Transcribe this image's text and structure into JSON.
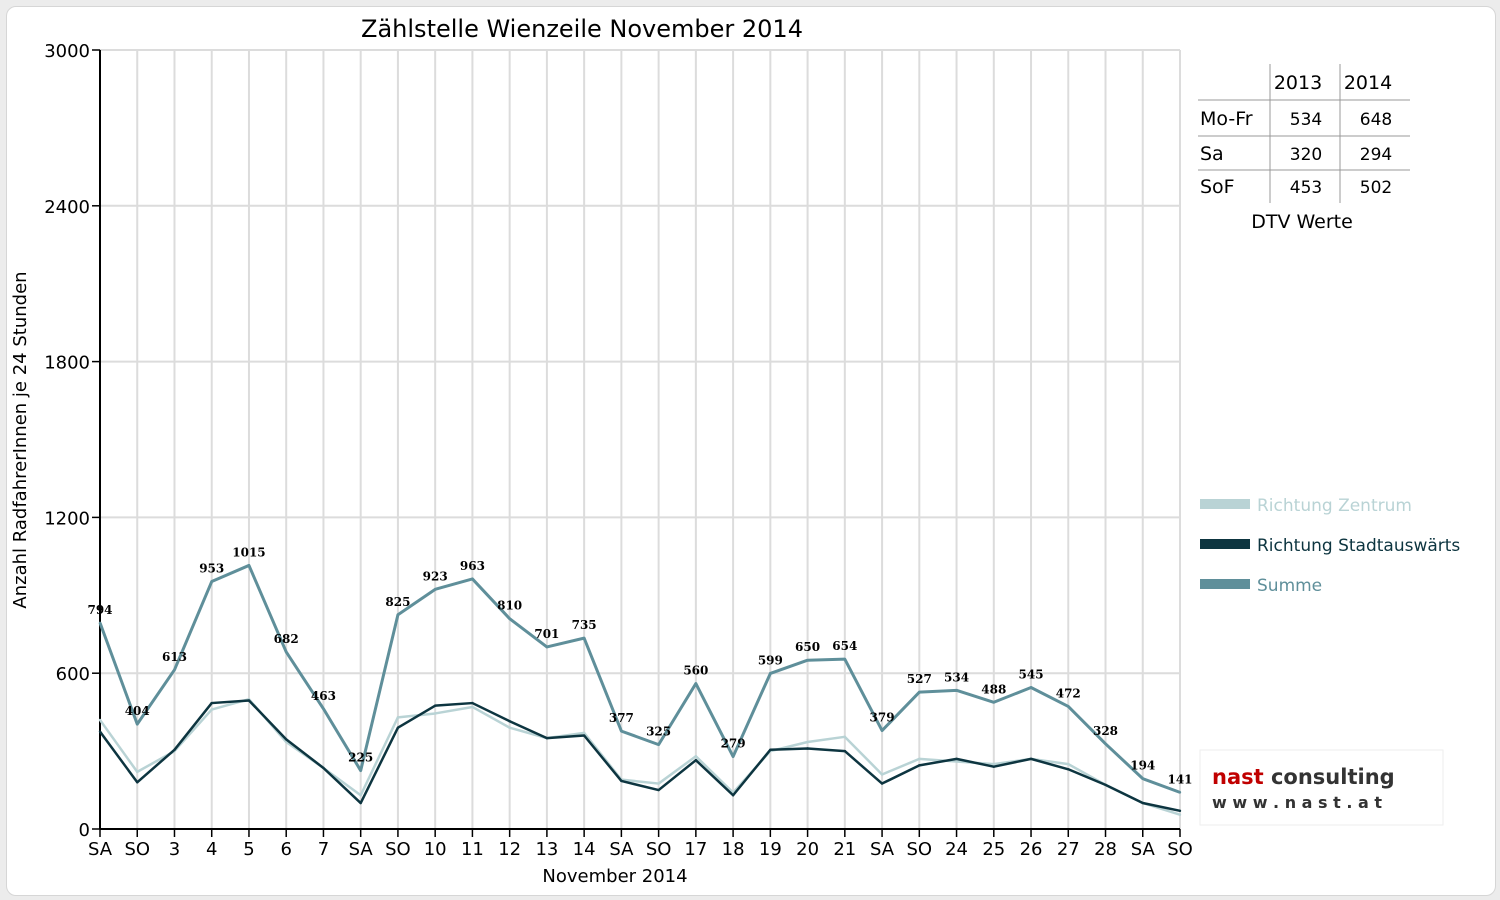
{
  "chart_data": {
    "type": "line",
    "title": "Zählstelle Wienzeile November 2014",
    "xlabel": "November 2014",
    "ylabel": "Anzahl RadfahrerInnen je 24 Stunden",
    "ylim": [
      0,
      3000
    ],
    "yticks": [
      "0",
      "600",
      "1200",
      "1800",
      "2400",
      "3000"
    ],
    "grid": true,
    "legend_position": "right",
    "categories": [
      "SA",
      "SO",
      "3",
      "4",
      "5",
      "6",
      "7",
      "SA",
      "SO",
      "10",
      "11",
      "12",
      "13",
      "14",
      "SA",
      "SO",
      "17",
      "18",
      "19",
      "20",
      "21",
      "SA",
      "SO",
      "24",
      "25",
      "26",
      "27",
      "28",
      "SA",
      "SO"
    ],
    "highlight_categories": [
      "SO"
    ],
    "highlight_color": "#ff0000",
    "series": [
      {
        "name": "Richtung Zentrum",
        "color": "#b9d3d5",
        "values": [
          420,
          220,
          300,
          460,
          500,
          335,
          235,
          130,
          430,
          445,
          470,
          390,
          350,
          370,
          190,
          175,
          280,
          140,
          300,
          335,
          355,
          210,
          270,
          260,
          250,
          270,
          250,
          170,
          100,
          55
        ]
      },
      {
        "name": "Richtung Stadtauswärts",
        "color": "#0d3540",
        "values": [
          375,
          180,
          305,
          485,
          495,
          345,
          235,
          100,
          390,
          475,
          485,
          415,
          350,
          360,
          185,
          150,
          265,
          130,
          305,
          310,
          300,
          175,
          245,
          270,
          240,
          270,
          230,
          170,
          100,
          70
        ]
      },
      {
        "name": "Summe",
        "color": "#5f8f9a",
        "values": [
          794,
          404,
          613,
          953,
          1015,
          682,
          463,
          225,
          825,
          923,
          963,
          810,
          701,
          735,
          377,
          325,
          560,
          279,
          599,
          650,
          654,
          379,
          527,
          534,
          488,
          545,
          472,
          328,
          194,
          141
        ]
      }
    ],
    "data_labels": [
      "794",
      "404",
      "613",
      "953",
      "1015",
      "682",
      "463",
      "225",
      "825",
      "923",
      "963",
      "810",
      "701",
      "735",
      "377",
      "325",
      "560",
      "279",
      "599",
      "650",
      "654",
      "379",
      "527",
      "534",
      "488",
      "545",
      "472",
      "328",
      "194",
      "141"
    ]
  },
  "dtv_table": {
    "header": [
      "",
      "2013",
      "2014"
    ],
    "rows": [
      {
        "label": "Mo-Fr",
        "v2013": "534",
        "v2014": "648"
      },
      {
        "label": "Sa",
        "v2013": "320",
        "v2014": "294"
      },
      {
        "label": "SoF",
        "v2013": "453",
        "v2014": "502"
      }
    ],
    "caption": "DTV Werte"
  },
  "logo": {
    "line1": "nast consulting",
    "line2": "w w w . n a s t . a t",
    "red": "#c00000",
    "dark": "#333333"
  }
}
